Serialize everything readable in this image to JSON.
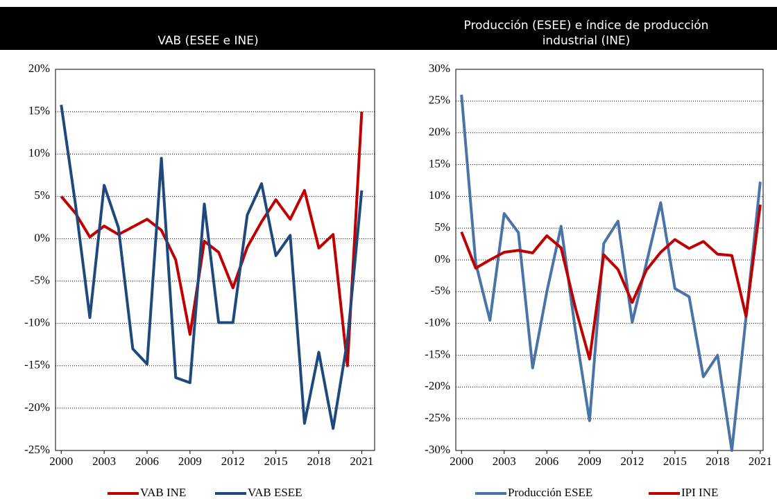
{
  "chart_data": [
    {
      "type": "line",
      "title": "VAB (ESEE e INE)",
      "x": [
        2000,
        2001,
        2002,
        2003,
        2004,
        2005,
        2006,
        2007,
        2008,
        2009,
        2010,
        2011,
        2012,
        2013,
        2014,
        2015,
        2016,
        2017,
        2018,
        2019,
        2020,
        2021
      ],
      "series": [
        {
          "name": "VAB INE",
          "color": "#c00000",
          "values": [
            5,
            3,
            0.2,
            1.5,
            0.5,
            1.4,
            2.3,
            1,
            -2.5,
            -11.3,
            -0.3,
            -1.6,
            -5.8,
            -1,
            2,
            4.6,
            2.3,
            5.7,
            -1.1,
            0.5,
            -15,
            15
          ]
        },
        {
          "name": "VAB ESEE",
          "color": "#1f497d",
          "values": [
            15.8,
            4,
            -9.3,
            6.3,
            1.3,
            -13,
            -14.8,
            9.5,
            -16.4,
            -17,
            4.1,
            -9.9,
            -9.9,
            2.8,
            6.5,
            -2,
            0.4,
            -21.8,
            -13.4,
            -22.4,
            -12,
            5.7
          ]
        }
      ],
      "xlim": [
        1999.6,
        2021.9
      ],
      "xticks": [
        2000,
        2003,
        2006,
        2009,
        2012,
        2015,
        2018,
        2021
      ],
      "ylim": [
        -25,
        20
      ],
      "yticks": [
        {
          "value": -25,
          "label": "-25%"
        },
        {
          "value": -20,
          "label": "-20%"
        },
        {
          "value": -15,
          "label": "-15%"
        },
        {
          "value": -10,
          "label": "-10%"
        },
        {
          "value": -5,
          "label": "-5%"
        },
        {
          "value": 0,
          "label": "0%"
        },
        {
          "value": 5,
          "label": "5%"
        },
        {
          "value": 10,
          "label": "10%"
        },
        {
          "value": 15,
          "label": "15%"
        },
        {
          "value": 20,
          "label": "20%"
        }
      ],
      "grid": true
    },
    {
      "type": "line",
      "title": "Producción (ESEE) e índice de producción industrial (INE)",
      "x": [
        2000,
        2001,
        2002,
        2003,
        2004,
        2005,
        2006,
        2007,
        2008,
        2009,
        2010,
        2011,
        2012,
        2013,
        2014,
        2015,
        2016,
        2017,
        2018,
        2019,
        2020,
        2021
      ],
      "series": [
        {
          "name": "Producción ESEE",
          "color": "#4a74a8",
          "values": [
            26,
            -0.5,
            -9.5,
            7.3,
            4.3,
            -17,
            -5,
            5.3,
            -11,
            -25.3,
            2.6,
            6.1,
            -9.8,
            -0.5,
            9,
            -4.5,
            -5.8,
            -18.4,
            -15,
            -30,
            -9,
            12.3
          ]
        },
        {
          "name": "IPI INE",
          "color": "#c00000",
          "values": [
            4.4,
            -1.3,
            0,
            1.2,
            1.5,
            1.1,
            3.8,
            1.9,
            -7.5,
            -15.6,
            0.8,
            -1.5,
            -6.7,
            -1.6,
            1.2,
            3.2,
            1.8,
            2.9,
            0.9,
            0.7,
            -8.9,
            8.7
          ]
        }
      ],
      "xlim": [
        1999.6,
        2021.2
      ],
      "xticks": [
        2000,
        2003,
        2006,
        2009,
        2012,
        2015,
        2018,
        2021
      ],
      "ylim": [
        -30,
        30
      ],
      "yticks": [
        {
          "value": -30,
          "label": "-30%"
        },
        {
          "value": -25,
          "label": "-25%"
        },
        {
          "value": -20,
          "label": "-20%"
        },
        {
          "value": -15,
          "label": "-15%"
        },
        {
          "value": -10,
          "label": "-10%"
        },
        {
          "value": -5,
          "label": "-5%"
        },
        {
          "value": 0,
          "label": "0%"
        },
        {
          "value": 5,
          "label": "5%"
        },
        {
          "value": 10,
          "label": "10%"
        },
        {
          "value": 15,
          "label": "15%"
        },
        {
          "value": 20,
          "label": "20%"
        },
        {
          "value": 25,
          "label": "25%"
        },
        {
          "value": 30,
          "label": "30%"
        }
      ],
      "grid": true
    }
  ]
}
